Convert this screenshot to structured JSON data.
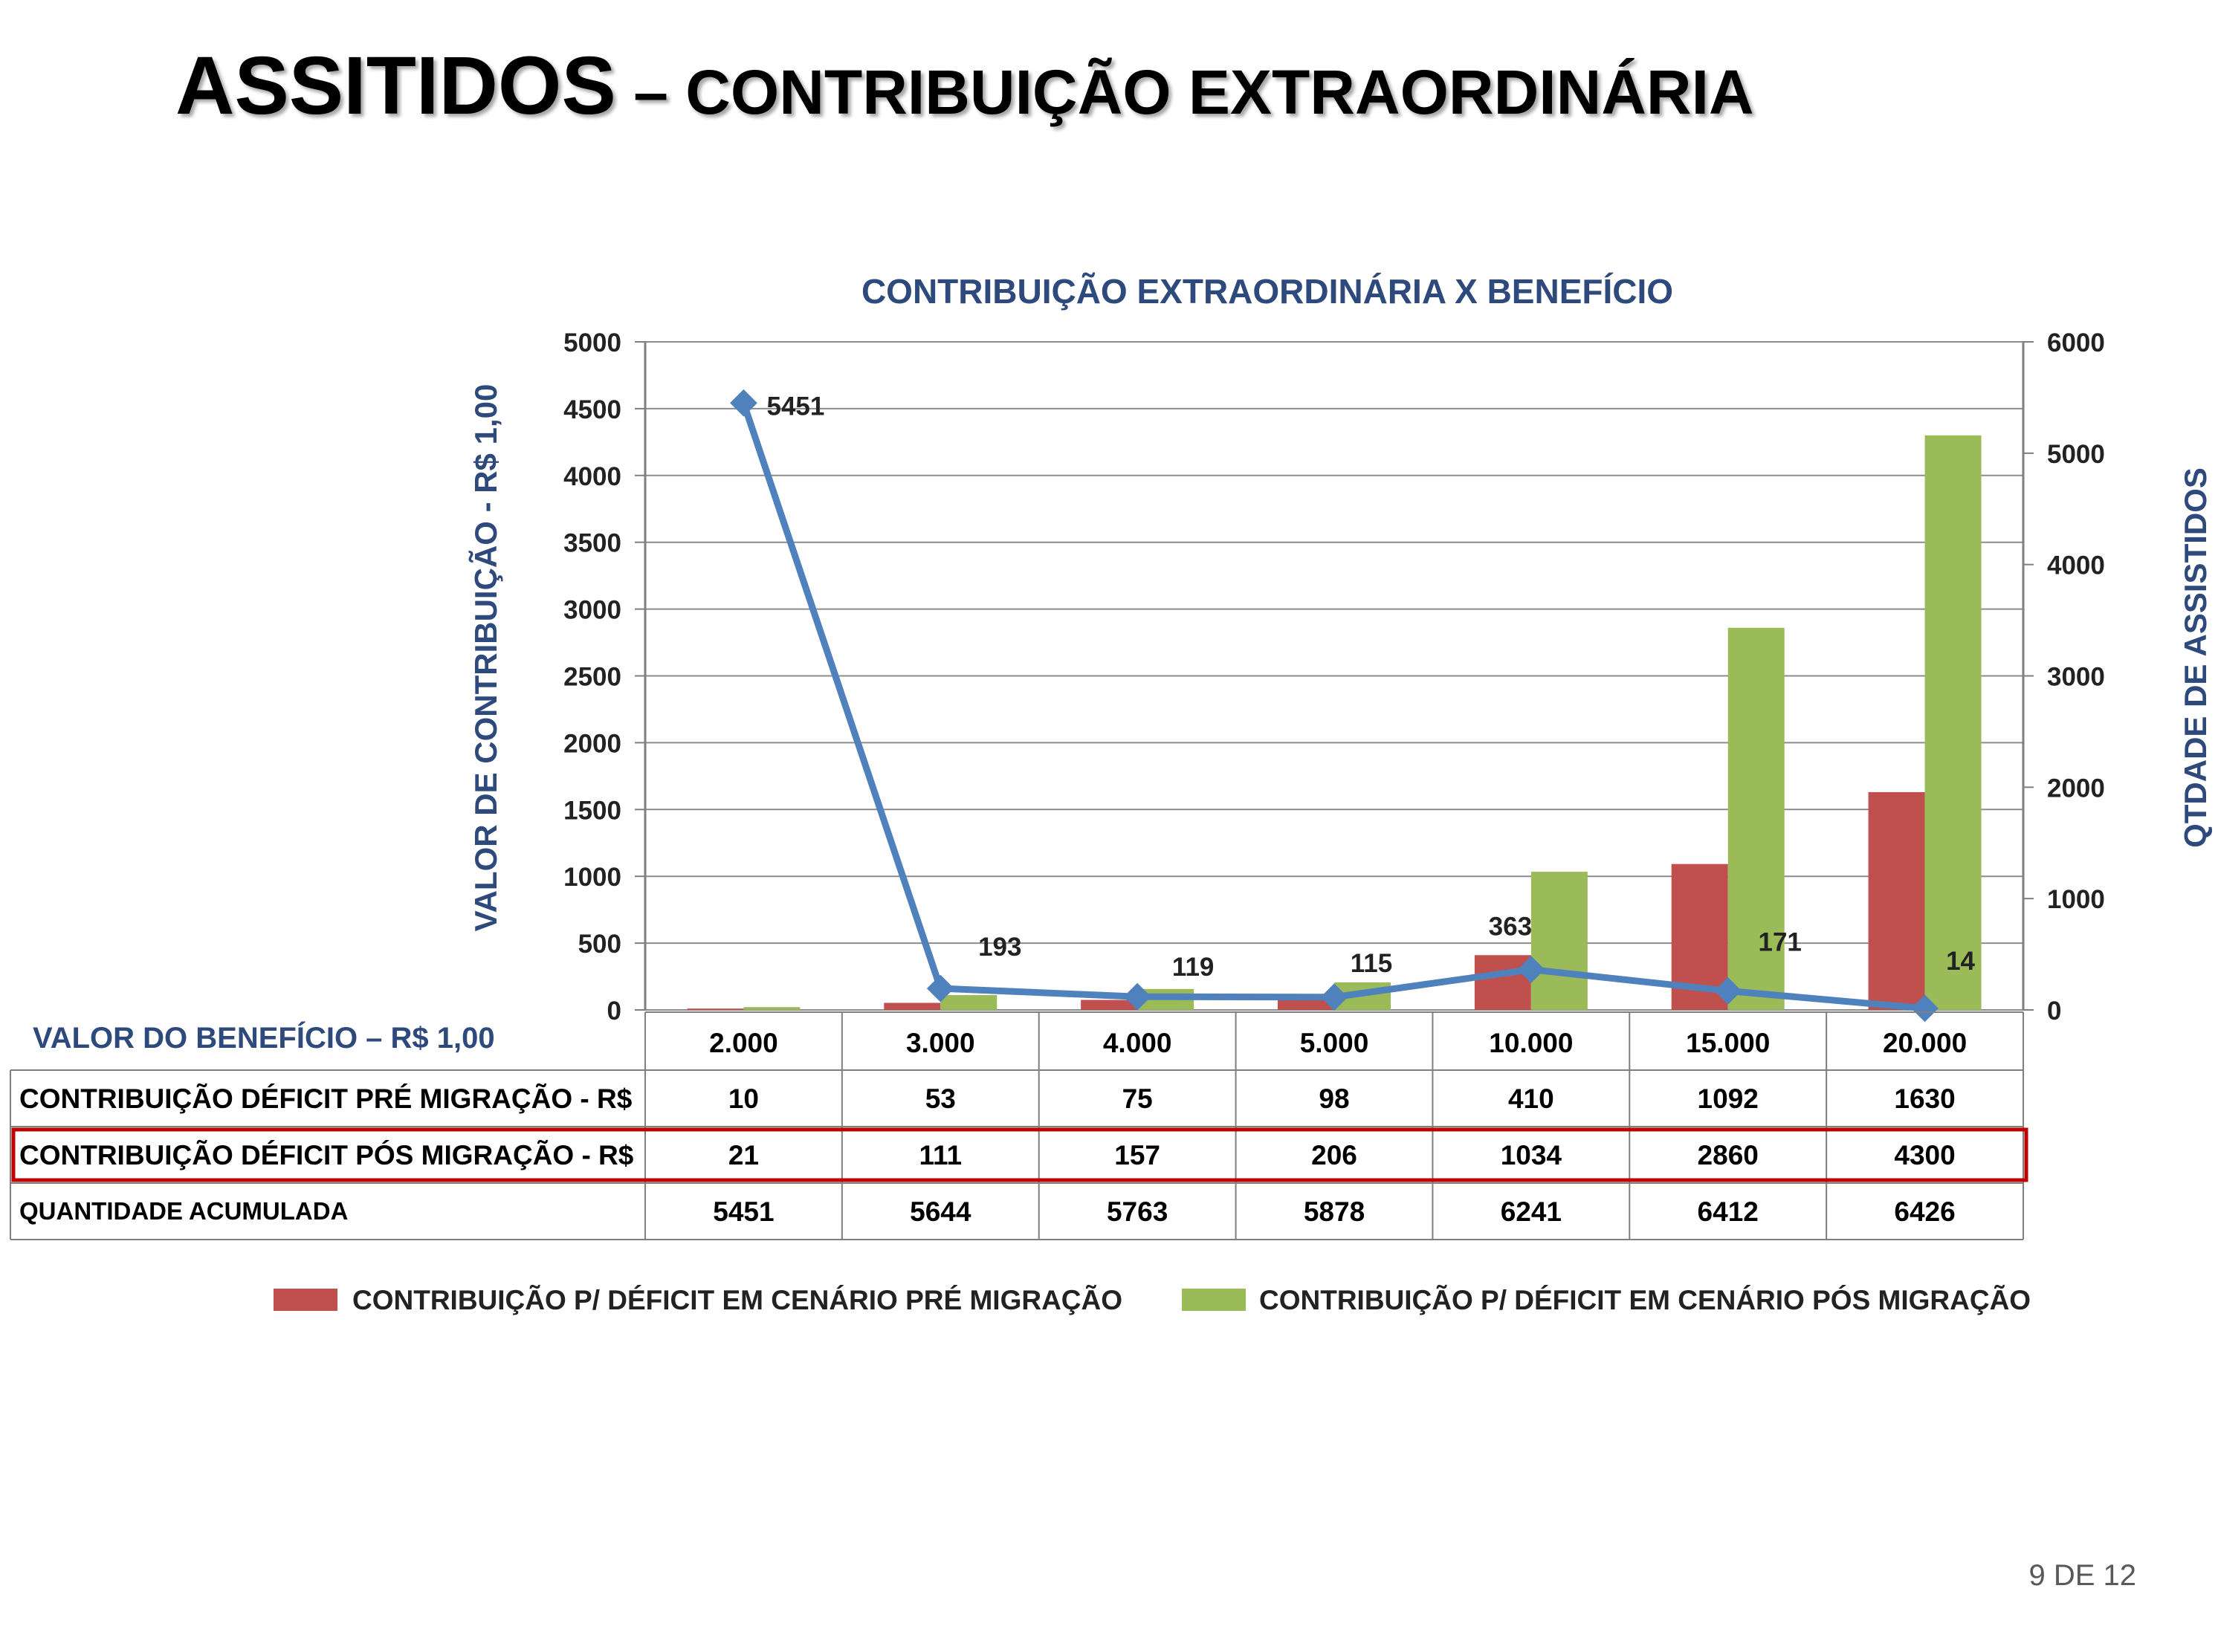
{
  "slide": {
    "title_main": "ASSITIDOS",
    "title_rest": " – CONTRIBUIÇÃO EXTRAORDINÁRIA",
    "footer": "9 DE 12"
  },
  "colors": {
    "pre": "#c0504d",
    "pos": "#9bbb59",
    "line": "#4f81bd",
    "axis_title": "#2e4a7d",
    "highlight": "#c00000"
  },
  "chart_data": {
    "type": "bar",
    "title": "CONTRIBUIÇÃO EXTRAORDINÁRIA  X BENEFÍCIO",
    "ylabel": "VALOR DE CONTRIBUIÇÃO - R$ 1,00",
    "y2label": "QTDADE DE ASSISTIDOS",
    "xlabel": "VALOR DO BENEFÍCIO – R$ 1,00",
    "ylim": [
      0,
      5000
    ],
    "y2lim": [
      0,
      6000
    ],
    "yticks": [
      "0",
      "500",
      "1000",
      "1500",
      "2000",
      "2500",
      "3000",
      "3500",
      "4000",
      "4500",
      "5000"
    ],
    "y2ticks": [
      "0",
      "1000",
      "2000",
      "3000",
      "4000",
      "5000",
      "6000"
    ],
    "grid": true,
    "legend_position": "bottom",
    "categories": [
      "2.000",
      "3.000",
      "4.000",
      "5.000",
      "10.000",
      "15.000",
      "20.000"
    ],
    "series": [
      {
        "name": "CONTRIBUIÇÃO P/ DÉFICIT EM CENÁRIO PRÉ MIGRAÇÃO",
        "type": "bar",
        "axis": "left",
        "values": [
          10,
          53,
          75,
          98,
          410,
          1092,
          1630
        ]
      },
      {
        "name": "CONTRIBUIÇÃO P/ DÉFICIT EM CENÁRIO PÓS MIGRAÇÃO",
        "type": "bar",
        "axis": "left",
        "values": [
          21,
          111,
          157,
          206,
          1034,
          2860,
          4300
        ]
      },
      {
        "type": "line",
        "axis": "right",
        "values": [
          5451,
          193,
          119,
          115,
          363,
          171,
          14
        ],
        "labels": [
          "5451",
          "193",
          "119",
          "115",
          "363",
          "171",
          "14"
        ]
      }
    ],
    "table": {
      "rows": [
        {
          "label": "CONTRIBUIÇÃO DÉFICIT PRÉ MIGRAÇÃO  - R$",
          "values": [
            "10",
            "53",
            "75",
            "98",
            "410",
            "1092",
            "1630"
          ]
        },
        {
          "label": "CONTRIBUIÇÃO DÉFICIT PÓS MIGRAÇÃO - R$",
          "values": [
            "21",
            "111",
            "157",
            "206",
            "1034",
            "2860",
            "4300"
          ],
          "highlight": true
        },
        {
          "label": "QUANTIDADE ACUMULADA",
          "values": [
            "5451",
            "5644",
            "5763",
            "5878",
            "6241",
            "6412",
            "6426"
          ]
        }
      ]
    }
  }
}
